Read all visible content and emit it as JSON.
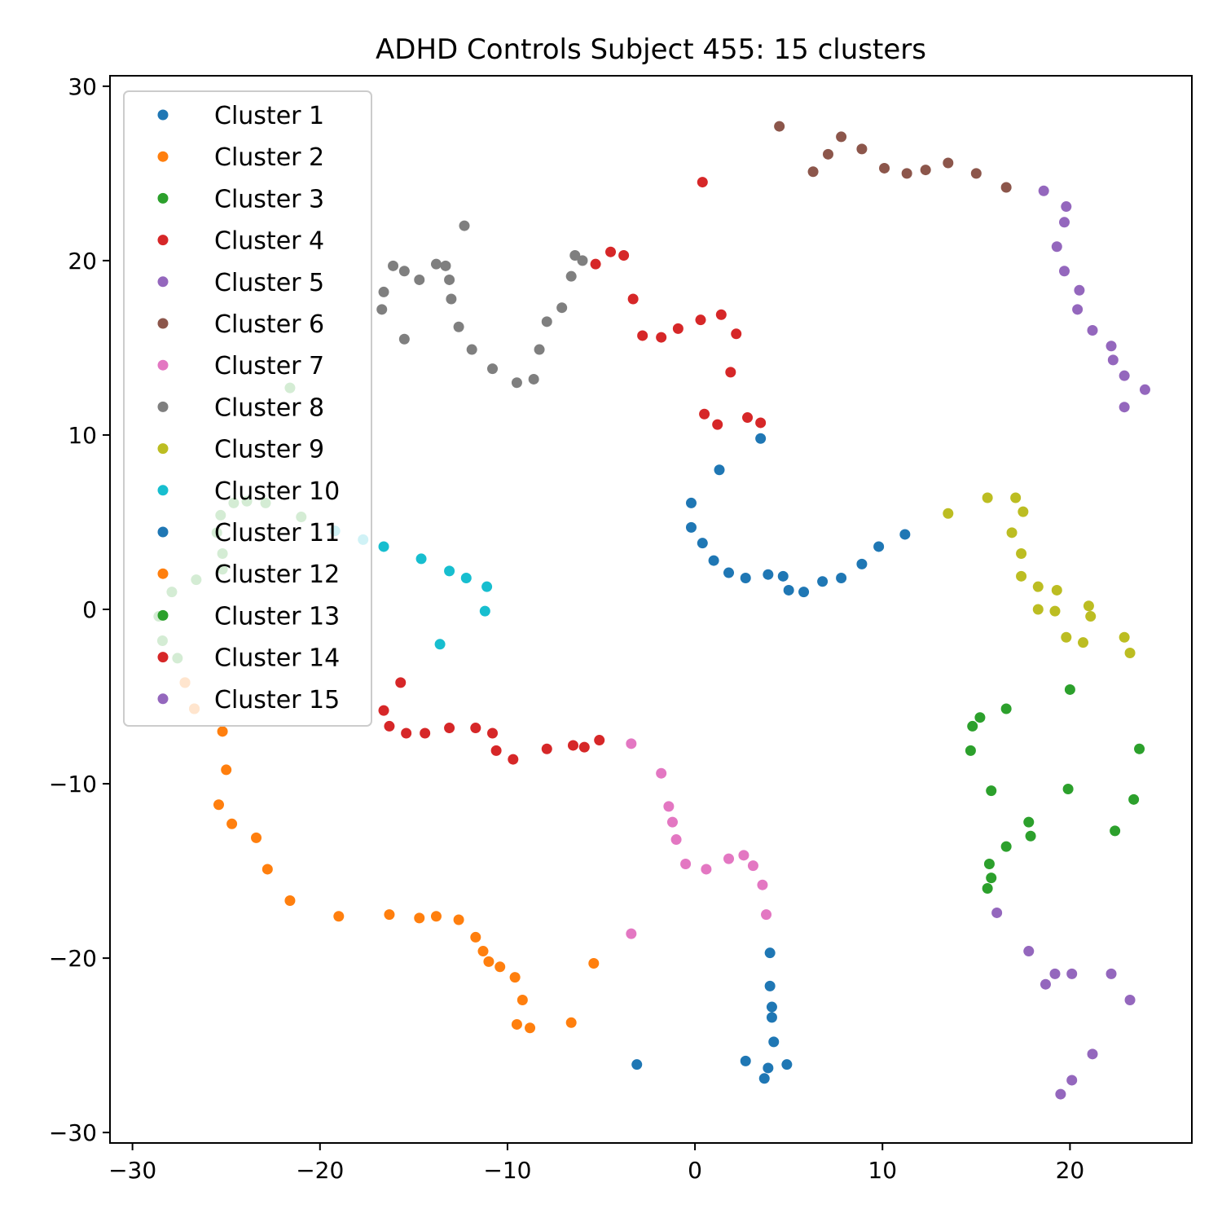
{
  "chart_data": {
    "type": "scatter",
    "title": "ADHD Controls Subject 455: 15 clusters",
    "xlabel": "",
    "ylabel": "",
    "xlim": [
      -31.2,
      26.5
    ],
    "ylim": [
      -30.6,
      30.6
    ],
    "xticks": [
      -30,
      -20,
      -10,
      0,
      10,
      20
    ],
    "yticks": [
      -30,
      -20,
      -10,
      0,
      10,
      20,
      30
    ],
    "xtick_labels": [
      "−30",
      "−20",
      "−10",
      "0",
      "10",
      "20"
    ],
    "ytick_labels": [
      "−30",
      "−20",
      "−10",
      "0",
      "10",
      "20",
      "30"
    ],
    "grid": false,
    "legend_position": "top-left",
    "series": [
      {
        "name": "Cluster 1",
        "color": "#1f77b4",
        "points": [
          [
            3.5,
            9.8
          ],
          [
            1.3,
            8.0
          ],
          [
            -0.2,
            6.1
          ],
          [
            -0.2,
            4.7
          ],
          [
            0.4,
            3.8
          ],
          [
            1.0,
            2.8
          ],
          [
            1.8,
            2.1
          ],
          [
            2.7,
            1.8
          ],
          [
            3.9,
            2.0
          ],
          [
            4.7,
            1.9
          ],
          [
            5.0,
            1.1
          ],
          [
            5.8,
            1.0
          ],
          [
            6.8,
            1.6
          ],
          [
            7.8,
            1.8
          ],
          [
            8.9,
            2.6
          ],
          [
            9.8,
            3.6
          ],
          [
            11.2,
            4.3
          ]
        ]
      },
      {
        "name": "Cluster 2",
        "color": "#ff7f0e",
        "points": [
          [
            -27.2,
            -4.2
          ],
          [
            -26.7,
            -5.7
          ],
          [
            -25.2,
            -7.0
          ],
          [
            -25.0,
            -9.2
          ],
          [
            -25.4,
            -11.2
          ],
          [
            -24.7,
            -12.3
          ],
          [
            -23.4,
            -13.1
          ],
          [
            -22.8,
            -14.9
          ],
          [
            -21.6,
            -16.7
          ],
          [
            -19.0,
            -17.6
          ],
          [
            -16.3,
            -17.5
          ],
          [
            -14.7,
            -17.7
          ],
          [
            -13.8,
            -17.6
          ],
          [
            -12.6,
            -17.8
          ],
          [
            -11.7,
            -18.8
          ],
          [
            -11.3,
            -19.6
          ],
          [
            -11.0,
            -20.2
          ],
          [
            -10.4,
            -20.5
          ],
          [
            -9.6,
            -21.1
          ],
          [
            -9.2,
            -22.4
          ],
          [
            -9.5,
            -23.8
          ],
          [
            -8.8,
            -24.0
          ],
          [
            -6.6,
            -23.7
          ],
          [
            -5.4,
            -20.3
          ]
        ]
      },
      {
        "name": "Cluster 3",
        "color": "#2ca02c",
        "points": [
          [
            20.0,
            -4.6
          ],
          [
            16.6,
            -5.7
          ],
          [
            15.2,
            -6.2
          ],
          [
            14.8,
            -6.7
          ],
          [
            14.7,
            -8.1
          ],
          [
            23.7,
            -8.0
          ],
          [
            15.8,
            -10.4
          ],
          [
            19.9,
            -10.3
          ],
          [
            23.4,
            -10.9
          ],
          [
            17.8,
            -12.2
          ],
          [
            17.9,
            -13.0
          ],
          [
            16.6,
            -13.6
          ],
          [
            22.4,
            -12.7
          ],
          [
            15.7,
            -14.6
          ],
          [
            15.8,
            -15.4
          ],
          [
            15.6,
            -16.0
          ]
        ]
      },
      {
        "name": "Cluster 4",
        "color": "#d62728",
        "points": [
          [
            0.4,
            24.5
          ],
          [
            -5.3,
            19.8
          ],
          [
            -4.5,
            20.5
          ],
          [
            -3.8,
            20.3
          ],
          [
            -3.3,
            17.8
          ],
          [
            -2.8,
            15.7
          ],
          [
            -1.8,
            15.6
          ],
          [
            -0.9,
            16.1
          ],
          [
            0.3,
            16.6
          ],
          [
            1.4,
            16.9
          ],
          [
            2.2,
            15.8
          ],
          [
            1.9,
            13.6
          ],
          [
            0.5,
            11.2
          ],
          [
            1.2,
            10.6
          ],
          [
            2.8,
            11.0
          ],
          [
            3.5,
            10.7
          ]
        ]
      },
      {
        "name": "Cluster 5",
        "color": "#9467bd",
        "points": [
          [
            18.6,
            24.0
          ],
          [
            19.8,
            23.1
          ],
          [
            19.7,
            22.2
          ],
          [
            19.3,
            20.8
          ],
          [
            19.7,
            19.4
          ],
          [
            20.5,
            18.3
          ],
          [
            20.4,
            17.2
          ],
          [
            21.2,
            16.0
          ],
          [
            22.2,
            15.1
          ],
          [
            22.3,
            14.3
          ],
          [
            22.9,
            13.4
          ],
          [
            24.0,
            12.6
          ],
          [
            22.9,
            11.6
          ]
        ]
      },
      {
        "name": "Cluster 6",
        "color": "#8c564b",
        "points": [
          [
            4.5,
            27.7
          ],
          [
            6.3,
            25.1
          ],
          [
            7.1,
            26.1
          ],
          [
            7.8,
            27.1
          ],
          [
            8.9,
            26.4
          ],
          [
            10.1,
            25.3
          ],
          [
            11.3,
            25.0
          ],
          [
            12.3,
            25.2
          ],
          [
            13.5,
            25.6
          ],
          [
            15.0,
            25.0
          ],
          [
            16.6,
            24.2
          ]
        ]
      },
      {
        "name": "Cluster 7",
        "color": "#e377c2",
        "points": [
          [
            -3.4,
            -7.7
          ],
          [
            -1.8,
            -9.4
          ],
          [
            -1.4,
            -11.3
          ],
          [
            -1.2,
            -12.2
          ],
          [
            -1.0,
            -13.2
          ],
          [
            -0.5,
            -14.6
          ],
          [
            0.6,
            -14.9
          ],
          [
            1.8,
            -14.3
          ],
          [
            2.6,
            -14.1
          ],
          [
            3.1,
            -14.7
          ],
          [
            3.6,
            -15.8
          ],
          [
            3.8,
            -17.5
          ],
          [
            -3.4,
            -18.6
          ]
        ]
      },
      {
        "name": "Cluster 8",
        "color": "#7f7f7f",
        "points": [
          [
            -12.3,
            22.0
          ],
          [
            -16.1,
            19.7
          ],
          [
            -15.5,
            19.4
          ],
          [
            -14.7,
            18.9
          ],
          [
            -13.8,
            19.8
          ],
          [
            -13.3,
            19.7
          ],
          [
            -13.1,
            18.9
          ],
          [
            -13.0,
            17.8
          ],
          [
            -12.6,
            16.2
          ],
          [
            -11.9,
            14.9
          ],
          [
            -16.6,
            18.2
          ],
          [
            -16.7,
            17.2
          ],
          [
            -15.5,
            15.5
          ],
          [
            -10.8,
            13.8
          ],
          [
            -9.5,
            13.0
          ],
          [
            -8.6,
            13.2
          ],
          [
            -8.3,
            14.9
          ],
          [
            -7.9,
            16.5
          ],
          [
            -7.1,
            17.3
          ],
          [
            -6.6,
            19.1
          ],
          [
            -6.4,
            20.3
          ],
          [
            -6.0,
            20.0
          ]
        ]
      },
      {
        "name": "Cluster 9",
        "color": "#bcbd22",
        "points": [
          [
            13.5,
            5.5
          ],
          [
            15.6,
            6.4
          ],
          [
            17.1,
            6.4
          ],
          [
            17.5,
            5.6
          ],
          [
            16.9,
            4.4
          ],
          [
            17.4,
            3.2
          ],
          [
            17.4,
            1.9
          ],
          [
            18.3,
            1.3
          ],
          [
            19.3,
            1.1
          ],
          [
            18.3,
            0.0
          ],
          [
            19.2,
            -0.1
          ],
          [
            21.0,
            0.2
          ],
          [
            21.1,
            -0.4
          ],
          [
            19.8,
            -1.6
          ],
          [
            20.7,
            -1.9
          ],
          [
            22.9,
            -1.6
          ],
          [
            23.2,
            -2.5
          ]
        ]
      },
      {
        "name": "Cluster 10",
        "color": "#17becf",
        "points": [
          [
            -19.2,
            4.5
          ],
          [
            -17.7,
            4.0
          ],
          [
            -16.6,
            3.6
          ],
          [
            -14.6,
            2.9
          ],
          [
            -13.1,
            2.2
          ],
          [
            -12.2,
            1.8
          ],
          [
            -11.1,
            1.3
          ],
          [
            -11.2,
            -0.1
          ],
          [
            -13.6,
            -2.0
          ]
        ]
      },
      {
        "name": "Cluster 11",
        "color": "#1f77b4",
        "points": [
          [
            4.0,
            -19.7
          ],
          [
            4.0,
            -21.6
          ],
          [
            4.1,
            -22.8
          ],
          [
            4.1,
            -23.4
          ],
          [
            4.2,
            -24.8
          ],
          [
            2.7,
            -25.9
          ],
          [
            3.9,
            -26.3
          ],
          [
            4.9,
            -26.1
          ],
          [
            3.7,
            -26.9
          ],
          [
            -3.1,
            -26.1
          ]
        ]
      },
      {
        "name": "Cluster 12",
        "color": "#ff7f0e",
        "points": [
          [
            -27.2,
            -4.2
          ],
          [
            -26.7,
            -5.7
          ]
        ]
      },
      {
        "name": "Cluster 13",
        "color": "#2ca02c",
        "points": [
          [
            -21.6,
            12.7
          ],
          [
            -25.3,
            5.4
          ],
          [
            -24.6,
            6.1
          ],
          [
            -23.9,
            6.2
          ],
          [
            -22.9,
            6.1
          ],
          [
            -21.0,
            5.3
          ],
          [
            -25.5,
            4.4
          ],
          [
            -25.2,
            3.2
          ],
          [
            -25.2,
            2.3
          ],
          [
            -26.6,
            1.7
          ],
          [
            -27.9,
            1.0
          ],
          [
            -28.6,
            -0.4
          ],
          [
            -28.4,
            -1.8
          ],
          [
            -27.6,
            -2.8
          ]
        ]
      },
      {
        "name": "Cluster 14",
        "color": "#d62728",
        "points": [
          [
            -15.7,
            -4.2
          ],
          [
            -16.6,
            -5.8
          ],
          [
            -16.3,
            -6.7
          ],
          [
            -15.4,
            -7.1
          ],
          [
            -14.4,
            -7.1
          ],
          [
            -13.1,
            -6.8
          ],
          [
            -11.7,
            -6.8
          ],
          [
            -10.8,
            -7.1
          ],
          [
            -10.6,
            -8.1
          ],
          [
            -9.7,
            -8.6
          ],
          [
            -7.9,
            -8.0
          ],
          [
            -6.5,
            -7.8
          ],
          [
            -5.9,
            -7.9
          ],
          [
            -5.1,
            -7.5
          ]
        ]
      },
      {
        "name": "Cluster 15",
        "color": "#9467bd",
        "points": [
          [
            16.1,
            -17.4
          ],
          [
            17.8,
            -19.6
          ],
          [
            19.2,
            -20.9
          ],
          [
            20.1,
            -20.9
          ],
          [
            22.2,
            -20.9
          ],
          [
            18.7,
            -21.5
          ],
          [
            23.2,
            -22.4
          ],
          [
            21.2,
            -25.5
          ],
          [
            20.1,
            -27.0
          ],
          [
            19.5,
            -27.8
          ]
        ]
      }
    ]
  }
}
